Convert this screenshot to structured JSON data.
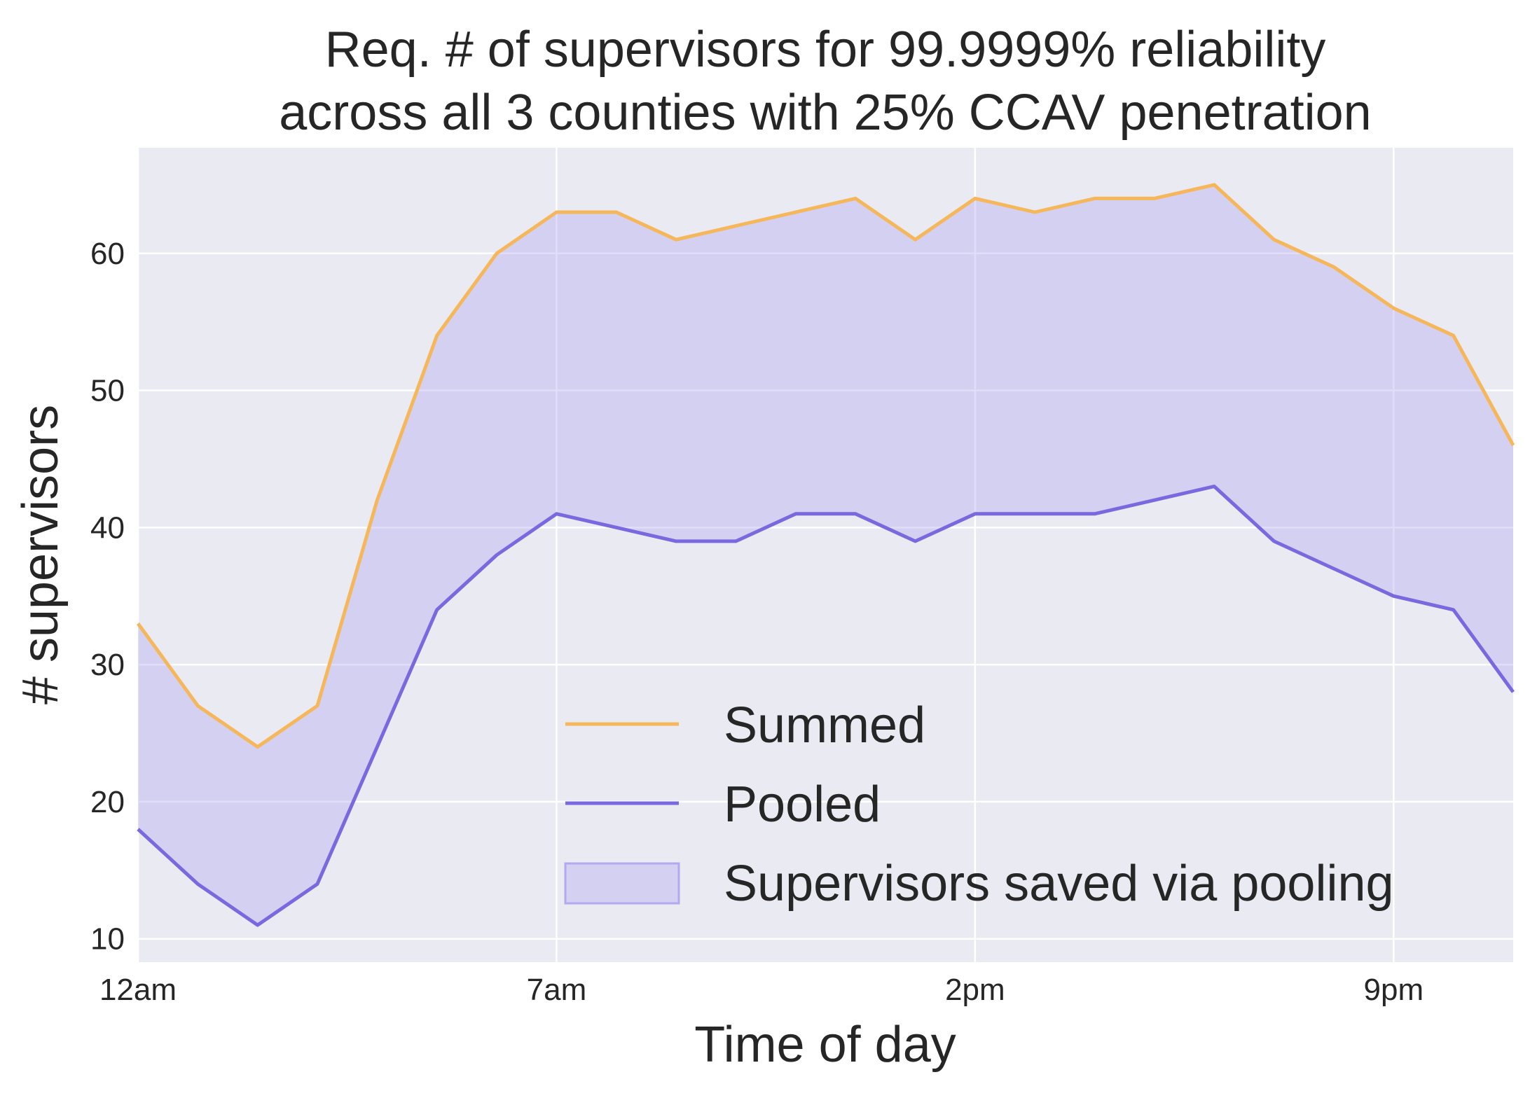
{
  "chart_data": {
    "type": "line",
    "title_lines": [
      "Req. # of supervisors for 99.9999% reliability",
      "across all 3 counties with 25% CCAV penetration"
    ],
    "xlabel": "Time of day",
    "ylabel": "# supervisors",
    "x": [
      0,
      1,
      2,
      3,
      4,
      5,
      6,
      7,
      8,
      9,
      10,
      11,
      12,
      13,
      14,
      15,
      16,
      17,
      18,
      19,
      20,
      21,
      22,
      23
    ],
    "x_ticks": [
      {
        "value": 0,
        "label": "12am"
      },
      {
        "value": 7,
        "label": "7am"
      },
      {
        "value": 14,
        "label": "2pm"
      },
      {
        "value": 21,
        "label": "9pm"
      }
    ],
    "y_ticks": [
      10,
      20,
      30,
      40,
      50,
      60
    ],
    "xlim": [
      0,
      23
    ],
    "ylim": [
      8.3,
      67.7
    ],
    "grid": true,
    "legend_position": "lower-center",
    "series": [
      {
        "name": "Summed",
        "color": "#F5B75A",
        "values": [
          33,
          27,
          24,
          27,
          42,
          54,
          60,
          63,
          63,
          61,
          62,
          63,
          64,
          61,
          64,
          63,
          64,
          64,
          65,
          61,
          59,
          56,
          54,
          46
        ]
      },
      {
        "name": "Pooled",
        "color": "#7A68E0",
        "values": [
          18,
          14,
          11,
          14,
          24,
          34,
          38,
          41,
          40,
          39,
          39,
          41,
          41,
          39,
          41,
          41,
          41,
          42,
          43,
          39,
          37,
          35,
          34,
          28
        ]
      }
    ],
    "fill": {
      "name": "Supervisors saved via pooling",
      "color": "#B4A9F0",
      "between": [
        "Summed",
        "Pooled"
      ]
    }
  }
}
